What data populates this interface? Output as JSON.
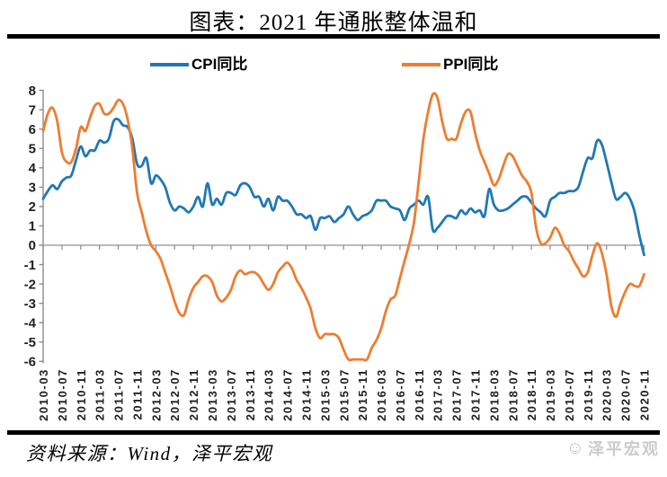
{
  "header": {
    "title": "图表：2021 年通胀整体温和"
  },
  "footer": {
    "source": "资料来源：Wind，泽平宏观",
    "watermark": "泽平宏观",
    "logo_icon": "smiley-mascot"
  },
  "chart_data": {
    "type": "line",
    "title": "图表：2021 年通胀整体温和",
    "frequency": "monthly",
    "x_start": "2010-03",
    "x_end": "2020-11",
    "ylim": [
      -6,
      8
    ],
    "ytick_step": 1,
    "grid": "off",
    "zero_line": true,
    "legend_position": "top",
    "axis_color": "#8c8c8c",
    "zero_line_color": "#a3a3a3",
    "tick_label_color": "#1f1f1f",
    "x_tick_labels": [
      "2010-03",
      "2010-07",
      "2010-11",
      "2011-03",
      "2011-07",
      "2011-11",
      "2012-03",
      "2012-07",
      "2012-11",
      "2013-03",
      "2013-07",
      "2013-11",
      "2014-03",
      "2014-07",
      "2014-11",
      "2015-03",
      "2015-07",
      "2015-11",
      "2016-03",
      "2016-07",
      "2016-11",
      "2017-03",
      "2017-07",
      "2017-11",
      "2018-03",
      "2018-07",
      "2018-11",
      "2019-03",
      "2019-07",
      "2019-11",
      "2020-03",
      "2020-07",
      "2020-11"
    ],
    "series": [
      {
        "name": "CPI同比",
        "color": "#1F78B5",
        "values": [
          2.4,
          2.8,
          3.1,
          2.9,
          3.3,
          3.5,
          3.6,
          4.4,
          5.1,
          4.6,
          4.9,
          4.9,
          5.4,
          5.3,
          5.5,
          6.4,
          6.5,
          6.2,
          6.1,
          5.5,
          4.2,
          4.1,
          4.5,
          3.2,
          3.6,
          3.4,
          3.0,
          2.2,
          1.8,
          2.0,
          1.9,
          1.7,
          2.0,
          2.5,
          2.0,
          3.2,
          2.1,
          2.4,
          2.1,
          2.7,
          2.7,
          2.6,
          3.1,
          3.2,
          3.0,
          2.5,
          2.5,
          2.0,
          2.4,
          1.8,
          2.5,
          2.3,
          2.3,
          2.0,
          1.6,
          1.6,
          1.4,
          1.5,
          0.8,
          1.4,
          1.4,
          1.5,
          1.2,
          1.4,
          1.6,
          2.0,
          1.6,
          1.3,
          1.5,
          1.6,
          1.8,
          2.3,
          2.3,
          2.3,
          2.0,
          1.9,
          1.8,
          1.3,
          1.9,
          2.1,
          2.3,
          2.1,
          2.5,
          0.8,
          0.9,
          1.2,
          1.5,
          1.5,
          1.4,
          1.8,
          1.6,
          1.9,
          1.7,
          1.8,
          1.5,
          2.9,
          2.1,
          1.8,
          1.8,
          1.9,
          2.1,
          2.3,
          2.5,
          2.5,
          2.2,
          1.9,
          1.7,
          1.5,
          2.3,
          2.5,
          2.7,
          2.7,
          2.8,
          2.8,
          3.0,
          3.8,
          4.5,
          4.5,
          5.4,
          5.2,
          4.3,
          3.3,
          2.4,
          2.5,
          2.7,
          2.4,
          1.7,
          0.5,
          -0.5
        ]
      },
      {
        "name": "PPI同比",
        "color": "#ED7D31",
        "values": [
          5.9,
          6.8,
          7.1,
          6.4,
          4.8,
          4.3,
          4.3,
          5.0,
          6.1,
          5.9,
          6.6,
          7.2,
          7.3,
          6.8,
          6.8,
          7.1,
          7.5,
          7.3,
          6.5,
          5.0,
          2.7,
          1.7,
          0.7,
          0.0,
          -0.3,
          -0.7,
          -1.4,
          -2.1,
          -2.9,
          -3.5,
          -3.6,
          -2.8,
          -2.2,
          -1.9,
          -1.6,
          -1.6,
          -1.9,
          -2.6,
          -2.9,
          -2.7,
          -2.3,
          -1.6,
          -1.3,
          -1.5,
          -1.4,
          -1.4,
          -1.6,
          -2.0,
          -2.3,
          -2.0,
          -1.4,
          -1.1,
          -0.9,
          -1.2,
          -1.8,
          -2.2,
          -2.7,
          -3.3,
          -4.3,
          -4.8,
          -4.6,
          -4.6,
          -4.6,
          -4.8,
          -5.4,
          -5.9,
          -5.9,
          -5.9,
          -5.9,
          -5.9,
          -5.3,
          -4.9,
          -4.3,
          -3.4,
          -2.8,
          -2.6,
          -1.7,
          -0.8,
          0.1,
          1.2,
          3.3,
          5.5,
          6.9,
          7.8,
          7.6,
          6.4,
          5.5,
          5.5,
          5.5,
          6.3,
          6.9,
          6.9,
          5.8,
          4.9,
          4.3,
          3.7,
          3.1,
          3.4,
          4.1,
          4.7,
          4.6,
          4.1,
          3.6,
          3.3,
          2.7,
          0.9,
          0.1,
          0.1,
          0.4,
          0.9,
          0.6,
          0.0,
          -0.3,
          -0.8,
          -1.2,
          -1.6,
          -1.4,
          -0.5,
          0.1,
          -0.4,
          -1.5,
          -3.1,
          -3.7,
          -3.0,
          -2.4,
          -2.0,
          -2.1,
          -2.1,
          -1.5
        ]
      }
    ]
  }
}
